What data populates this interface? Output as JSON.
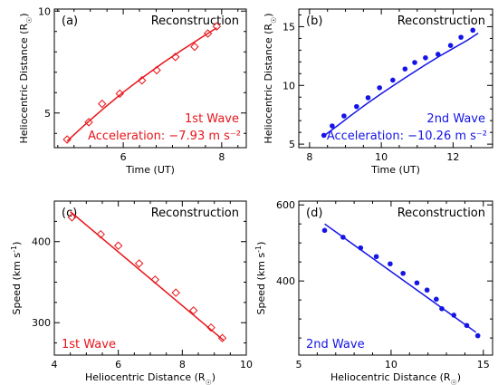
{
  "chart_data": [
    {
      "id": "a",
      "type": "scatter",
      "panel_label": "(a)",
      "title": "Reconstruction",
      "xlabel": "Time (UT)",
      "ylabel": "Heliocentric Distance (R",
      "ylabel_sub": "☉",
      "ylabel_end": ")",
      "xlim": [
        4.6,
        8.5
      ],
      "ylim": [
        3.3,
        10.1
      ],
      "xticks": [
        6,
        8
      ],
      "yticks": [
        5,
        10
      ],
      "minor_x": [
        4.67,
        5.0,
        5.33,
        5.67,
        6.33,
        6.67,
        7.0,
        7.33,
        7.67,
        8.33
      ],
      "minor_y": [
        4,
        6,
        7,
        8,
        9
      ],
      "color": "#e8141a",
      "marker": "diamond",
      "annotations": [
        "1st Wave",
        "Acceleration: −7.93 m s⁻²"
      ],
      "x": [
        4.86,
        5.3,
        5.57,
        5.93,
        6.38,
        6.68,
        7.06,
        7.45,
        7.72,
        7.9
      ],
      "y": [
        3.7,
        4.55,
        5.45,
        5.95,
        6.6,
        7.1,
        7.75,
        8.25,
        8.9,
        9.25
      ],
      "fit": {
        "x": [
          4.86,
          5.2,
          5.6,
          6.0,
          6.4,
          6.8,
          7.2,
          7.6,
          7.9
        ],
        "y": [
          3.62,
          4.38,
          5.22,
          6.02,
          6.75,
          7.45,
          8.1,
          8.72,
          9.18
        ]
      }
    },
    {
      "id": "b",
      "type": "scatter",
      "panel_label": "(b)",
      "title": "Reconstruction",
      "xlabel": "Time (UT)",
      "ylabel": "Heliocentric Distance (R",
      "ylabel_sub": "☉",
      "ylabel_end": ")",
      "xlim": [
        7.7,
        13.1
      ],
      "ylim": [
        4.7,
        16.5
      ],
      "xticks": [
        8,
        10,
        12
      ],
      "yticks": [
        5,
        10,
        15
      ],
      "minor_x": [
        8.5,
        9,
        9.5,
        10.5,
        11,
        11.5,
        12.5
      ],
      "minor_y": [
        6,
        7,
        8,
        9,
        11,
        12,
        13,
        14,
        16
      ],
      "color": "#1414e6",
      "marker": "dot",
      "annotations": [
        "2nd Wave",
        "Acceleration: −10.26 m s⁻²"
      ],
      "x": [
        8.4,
        8.63,
        8.96,
        9.31,
        9.63,
        9.95,
        10.32,
        10.66,
        10.93,
        11.23,
        11.58,
        11.93,
        12.22,
        12.55
      ],
      "y": [
        5.75,
        6.55,
        7.4,
        8.2,
        8.95,
        9.8,
        10.45,
        11.4,
        11.95,
        12.35,
        12.65,
        13.4,
        14.1,
        14.7
      ],
      "fit": {
        "x": [
          8.4,
          8.8,
          9.2,
          9.6,
          10.0,
          10.4,
          10.8,
          11.2,
          11.6,
          12.0,
          12.4,
          12.7
        ],
        "y": [
          5.7,
          6.62,
          7.55,
          8.45,
          9.3,
          10.12,
          10.92,
          11.7,
          12.45,
          13.15,
          13.85,
          14.45
        ]
      }
    },
    {
      "id": "c",
      "type": "scatter",
      "panel_label": "(c)",
      "title": "Reconstruction",
      "xlabel": "Heliocentric Distance (R",
      "xlabel_sub": "☉",
      "xlabel_end": ")",
      "ylabel": "Speed (km s",
      "ylabel_sup": "-1",
      "ylabel_end": ")",
      "xlim": [
        4.0,
        10.0
      ],
      "ylim": [
        260,
        450
      ],
      "xticks": [
        4,
        6,
        8,
        10
      ],
      "yticks": [
        300,
        400
      ],
      "minor_x": [
        4.5,
        5,
        5.5,
        6.5,
        7,
        7.5,
        8.5,
        9,
        9.5
      ],
      "minor_y": [
        275,
        325,
        350,
        375,
        425
      ],
      "color": "#e8141a",
      "marker": "diamond",
      "annotations": [
        "1st Wave"
      ],
      "x": [
        4.55,
        5.45,
        6.0,
        6.65,
        7.15,
        7.8,
        8.35,
        8.9,
        9.25
      ],
      "y": [
        430,
        409,
        395,
        373,
        353,
        337,
        315,
        294,
        281
      ],
      "fit": {
        "x": [
          4.5,
          9.3
        ],
        "y": [
          437,
          278
        ]
      }
    },
    {
      "id": "d",
      "type": "scatter",
      "panel_label": "(d)",
      "title": "Reconstruction",
      "xlabel": "Heliocentric Distance (R",
      "xlabel_sub": "☉",
      "xlabel_end": ")",
      "ylabel": "Speed (km s",
      "ylabel_sup": "-1",
      "ylabel_end": ")",
      "xlim": [
        5.0,
        15.5
      ],
      "ylim": [
        205,
        610
      ],
      "xticks": [
        5,
        10,
        15
      ],
      "yticks": [
        400,
        600
      ],
      "minor_x": [
        6,
        7,
        8,
        9,
        11,
        12,
        13,
        14
      ],
      "minor_y": [
        250,
        300,
        350,
        450,
        500,
        550
      ],
      "color": "#1414e6",
      "marker": "dot",
      "annotations": [
        "2nd Wave"
      ],
      "x": [
        6.4,
        7.4,
        8.35,
        9.2,
        9.95,
        10.65,
        11.4,
        11.95,
        12.45,
        12.75,
        13.4,
        14.1,
        14.7
      ],
      "y": [
        533,
        515,
        487,
        464,
        445,
        420,
        395,
        376,
        352,
        327,
        310,
        283,
        256
      ],
      "fit": {
        "x": [
          6.4,
          14.6
        ],
        "y": [
          550,
          265
        ]
      }
    }
  ]
}
